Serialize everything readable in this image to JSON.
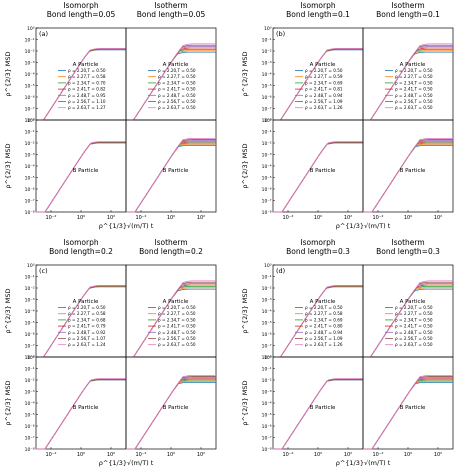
{
  "colors": [
    "#1f77b4",
    "#ff7f0e",
    "#2ca02c",
    "#d62728",
    "#9467bd",
    "#8c564b",
    "#e377c2",
    "#7f7f7f"
  ],
  "axis": {
    "ylabel": "ρ^{2/3} MSD",
    "xlabel": "ρ^{1/3}√(m/T) t",
    "xticks": [
      "10⁻²",
      "10⁰",
      "10²"
    ],
    "yticks_top": [
      "10⁻⁸",
      "10⁻⁷",
      "10⁻⁶",
      "10⁻⁵",
      "10⁻⁴",
      "10⁻³",
      "10⁻²",
      "10⁻¹",
      "10⁰"
    ],
    "yticks_bottom": [
      "10⁻⁸",
      "10⁻⁷",
      "10⁻⁶",
      "10⁻⁵",
      "10⁻⁴",
      "10⁻³",
      "10⁻²",
      "10⁻¹",
      "10⁰"
    ]
  },
  "chart_data": [
    {
      "type": "line",
      "panel": "(a)",
      "titles": [
        "Isomorph",
        "Isotherm"
      ],
      "bond": "Bond length=0.05",
      "subplots": [
        "A Particle",
        "B Particle"
      ],
      "x_log_range": [
        -3,
        3
      ],
      "y_log_range": [
        -8,
        0
      ],
      "legend_isomorph": [
        "ρ = 2.20,T = 0.50",
        "ρ = 2.27,T = 0.58",
        "ρ = 2.34,T = 0.70",
        "ρ = 2.41,T = 0.82",
        "ρ = 2.48,T = 0.95",
        "ρ = 2.56,T = 1.10",
        "ρ = 2.63,T = 1.27"
      ],
      "legend_isotherm": [
        "ρ = 2.20,T = 0.50",
        "ρ = 2.27,T = 0.50",
        "ρ = 2.34,T = 0.50",
        "ρ = 2.41,T = 0.50",
        "ρ = 2.48,T = 0.50",
        "ρ = 2.56,T = 0.50",
        "ρ = 2.63,T = 0.50"
      ]
    },
    {
      "type": "line",
      "panel": "(b)",
      "titles": [
        "Isomorph",
        "Isotherm"
      ],
      "bond": "Bond length=0.1",
      "subplots": [
        "A Particle",
        "B Particle"
      ],
      "x_log_range": [
        -3,
        3
      ],
      "y_log_range": [
        -8,
        0
      ],
      "legend_isomorph": [
        "ρ = 2.20,T = 0.50",
        "ρ = 2.27,T = 0.59",
        "ρ = 2.34,T = 0.69",
        "ρ = 2.41,T = 0.81",
        "ρ = 2.48,T = 0.94",
        "ρ = 2.56,T = 1.09",
        "ρ = 2.63,T = 1.26"
      ],
      "legend_isotherm": [
        "ρ = 2.20,T = 0.50",
        "ρ = 2.27,T = 0.50",
        "ρ = 2.34,T = 0.50",
        "ρ = 2.41,T = 0.50",
        "ρ = 2.48,T = 0.50",
        "ρ = 2.56,T = 0.50",
        "ρ = 2.63,T = 0.50"
      ]
    },
    {
      "type": "line",
      "panel": "(c)",
      "titles": [
        "Isomorph",
        "Isotherm"
      ],
      "bond": "Bond length=0.2",
      "subplots": [
        "A Particle",
        "B Particle"
      ],
      "x_log_range": [
        -3,
        3
      ],
      "y_log_range": [
        -8,
        0
      ],
      "legend_isomorph": [
        "ρ = 2.20,T = 0.50",
        "ρ = 2.27,T = 0.58",
        "ρ = 2.34,T = 0.68",
        "ρ = 2.41,T = 0.79",
        "ρ = 2.48,T = 0.92",
        "ρ = 2.56,T = 1.07",
        "ρ = 2.63,T = 1.24"
      ],
      "legend_isotherm": [
        "ρ = 2.20,T = 0.50",
        "ρ = 2.27,T = 0.50",
        "ρ = 2.34,T = 0.50",
        "ρ = 2.41,T = 0.50",
        "ρ = 2.48,T = 0.50",
        "ρ = 2.56,T = 0.50",
        "ρ = 2.63,T = 0.50"
      ]
    },
    {
      "type": "line",
      "panel": "(d)",
      "titles": [
        "Isomorph",
        "Isotherm"
      ],
      "bond": "Bond length=0.3",
      "subplots": [
        "A Particle",
        "B Particle"
      ],
      "x_log_range": [
        -3,
        3
      ],
      "y_log_range": [
        -8,
        0
      ],
      "legend_isomorph": [
        "ρ = 2.20,T = 0.50",
        "ρ = 2.27,T = 0.58",
        "ρ = 2.34,T = 0.69",
        "ρ = 2.41,T = 0.80",
        "ρ = 2.48,T = 0.94",
        "ρ = 2.56,T = 1.09",
        "ρ = 2.63,T = 1.26"
      ],
      "legend_isotherm": [
        "ρ = 2.20,T = 0.50",
        "ρ = 2.27,T = 0.50",
        "ρ = 2.34,T = 0.50",
        "ρ = 2.41,T = 0.50",
        "ρ = 2.48,T = 0.50",
        "ρ = 2.56,T = 0.50",
        "ρ = 2.63,T = 0.50"
      ]
    }
  ]
}
